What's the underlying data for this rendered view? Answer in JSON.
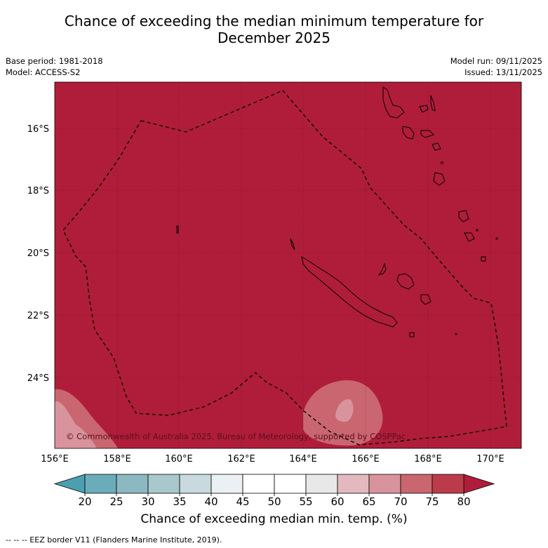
{
  "title_line1": "Chance of exceeding the median minimum temperature for",
  "title_line2": "December 2025",
  "meta_left": [
    "Base period: 1981-2018",
    "Model: ACCESS-S2"
  ],
  "meta_right": [
    "Model run: 09/11/2025",
    "Issued: 13/11/2025"
  ],
  "map": {
    "lon_range": [
      156,
      171
    ],
    "lat_range": [
      -26.1,
      -14.6
    ],
    "lon_ticks": [
      "156°E",
      "158°E",
      "160°E",
      "162°E",
      "164°E",
      "166°E",
      "168°E",
      "170°E"
    ],
    "lat_ticks": [
      "16°S",
      "18°S",
      "20°S",
      "22°S",
      "24°S"
    ],
    "background_category": "above 80%",
    "credit": "© Commonwealth of Australia 2025, Bureau of Meteorology, supported by COSPPac"
  },
  "colorbar": {
    "ticks": [
      "20",
      "25",
      "30",
      "35",
      "40",
      "45",
      "50",
      "55",
      "60",
      "65",
      "70",
      "75",
      "80"
    ],
    "colors": [
      "#6aacba",
      "#8cb8c2",
      "#a9c8cd",
      "#c8dadd",
      "#ebf1f2",
      "#ffffff",
      "#ffffff",
      "#e8e8e8",
      "#e3b9bf",
      "#d8939d",
      "#c9666f",
      "#bc3b4b"
    ],
    "under_color": "#4b9fb1",
    "over_color": "#b01d3a",
    "label": "Chance of exceeding median min. temp. (%)"
  },
  "eez_legend": "--  --  -- EEZ border V11 (Flanders Marine Institute, 2019).",
  "colors": {
    "map_fill": "#b01d3a",
    "light_patch": "#c9666f",
    "lighter_patch": "#d8939d"
  }
}
